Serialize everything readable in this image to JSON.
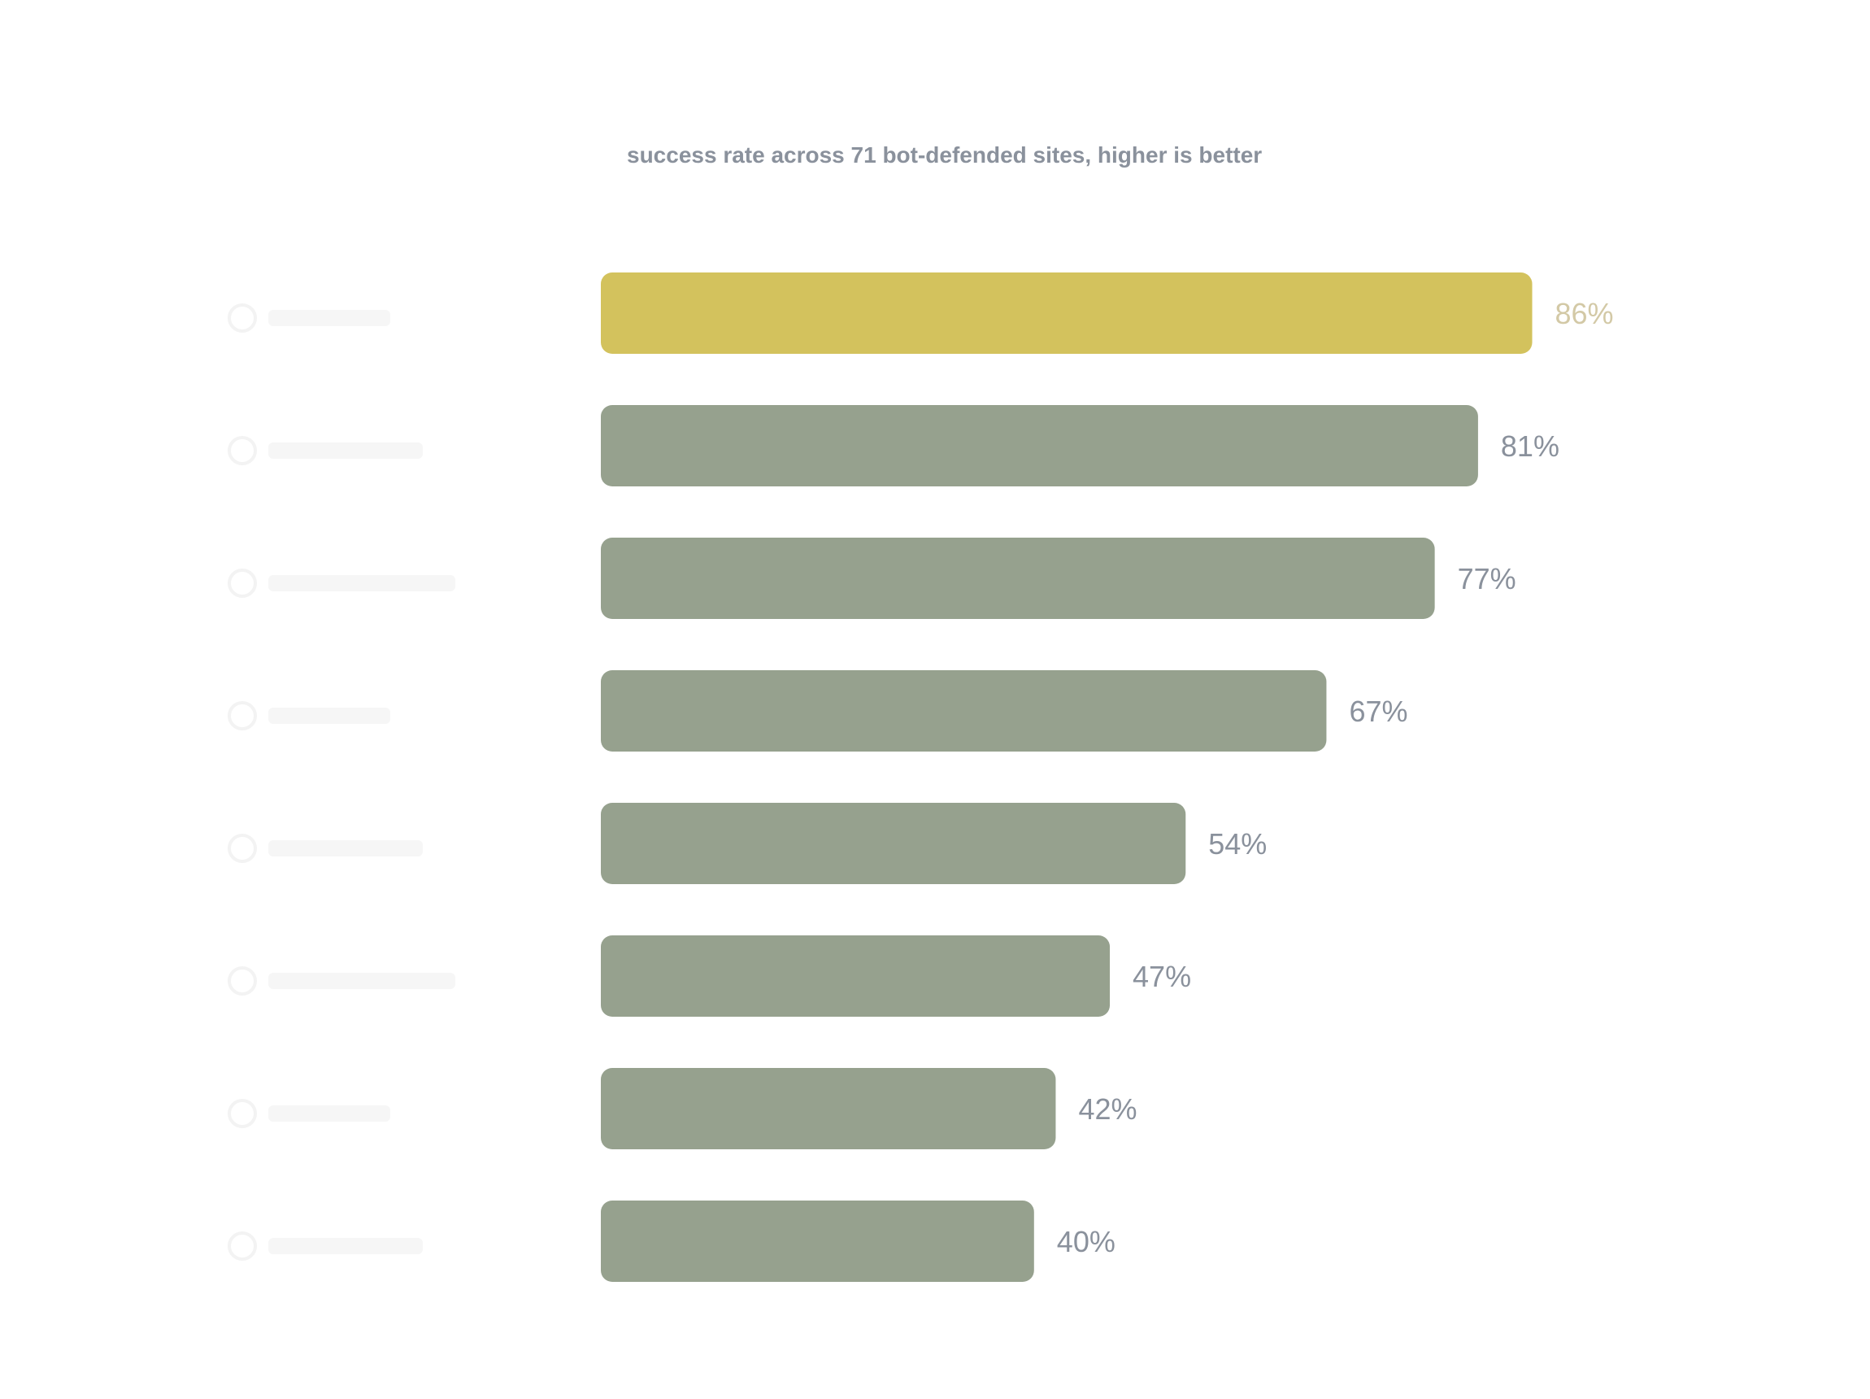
{
  "chart_data": {
    "type": "bar",
    "orientation": "horizontal",
    "title": "",
    "subtitle": "success rate across 71 bot-defended sites, higher is better",
    "xlabel": "",
    "ylabel": "",
    "xlim": [
      0,
      100
    ],
    "grid": false,
    "legend": "none",
    "categories": [
      "",
      "",
      "",
      "",
      "",
      "",
      "",
      ""
    ],
    "values": [
      86,
      81,
      77,
      67,
      54,
      47,
      42,
      40
    ],
    "value_labels": [
      "86%",
      "81%",
      "77%",
      "67%",
      "54%",
      "47%",
      "42%",
      "40%"
    ],
    "highlight_index": 0,
    "colors": {
      "highlight_bar": "#d3c25d",
      "highlight_label": "#d3c9a6",
      "bar": "#96a18e",
      "label": "#8a919c"
    }
  }
}
